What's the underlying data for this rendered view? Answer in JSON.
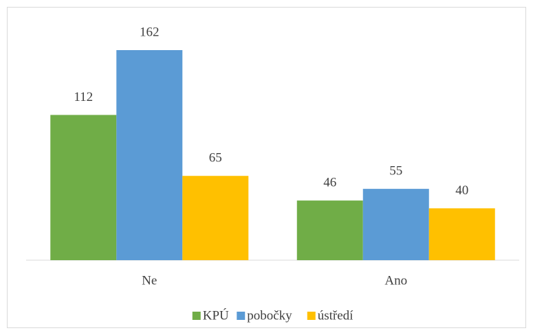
{
  "chart_data": {
    "type": "bar",
    "categories": [
      "Ne",
      "Ano"
    ],
    "series": [
      {
        "name": "KPÚ",
        "color": "#70ad47",
        "values": [
          112,
          46
        ]
      },
      {
        "name": "pobočky",
        "color": "#5b9bd5",
        "values": [
          162,
          55
        ]
      },
      {
        "name": "ústředí",
        "color": "#ffc000",
        "values": [
          65,
          40
        ]
      }
    ],
    "legend": "bottom"
  }
}
